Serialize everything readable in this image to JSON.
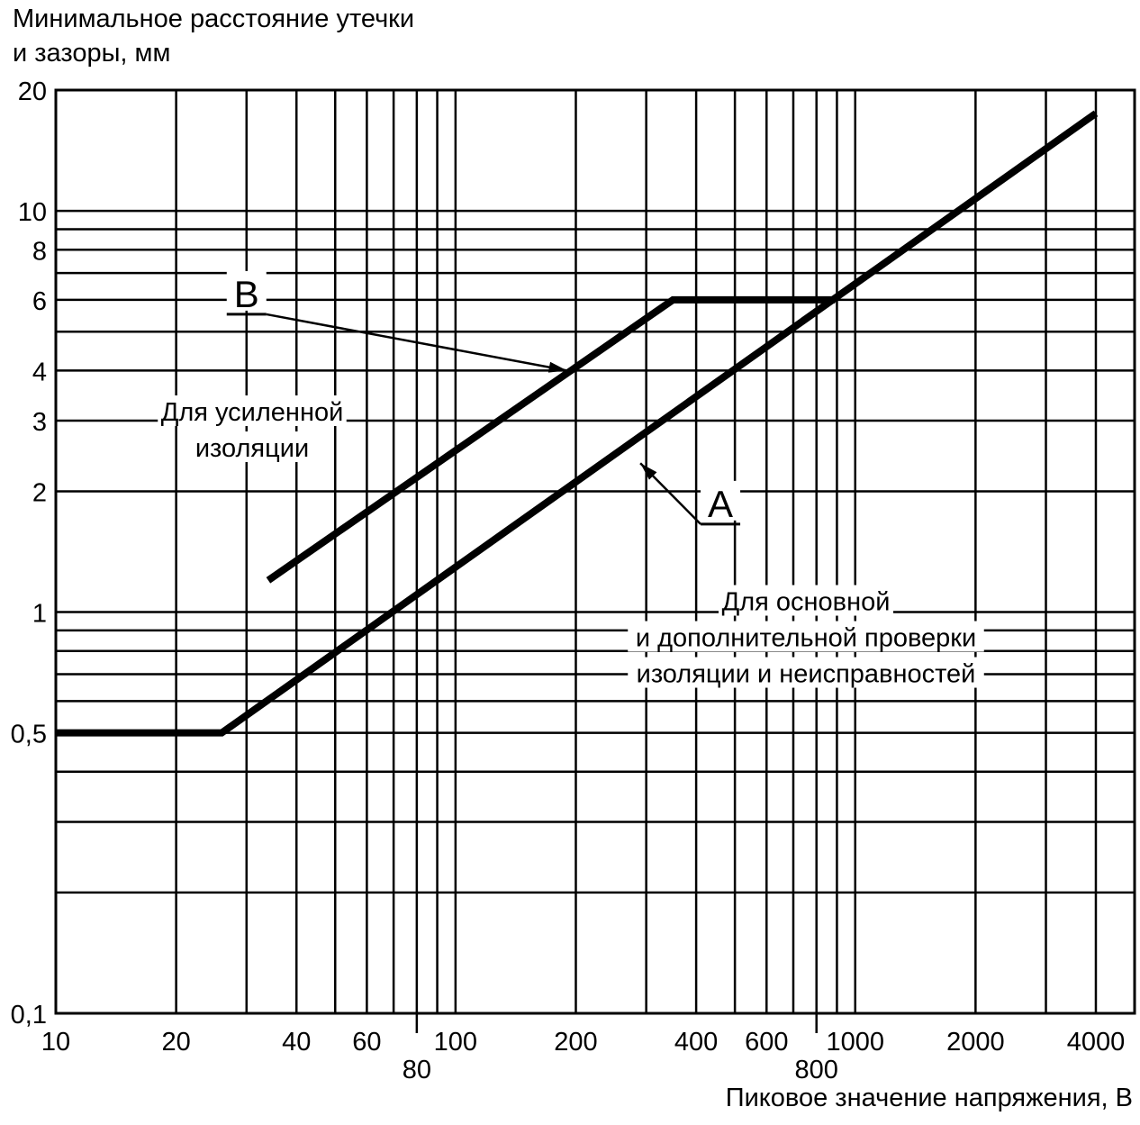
{
  "chart_data": {
    "type": "line",
    "title": "",
    "ylabel_lines": [
      "Минимальное расстояние утечки",
      "и зазоры, мм"
    ],
    "xlabel": "Пиковое значение напряжения, В",
    "xscale": "log",
    "yscale": "log",
    "xlim": [
      10,
      5000
    ],
    "ylim": [
      0.1,
      20
    ],
    "grid": true,
    "x_grid": [
      20,
      30,
      40,
      50,
      60,
      70,
      80,
      90,
      100,
      200,
      300,
      400,
      500,
      600,
      700,
      800,
      900,
      1000,
      2000,
      3000,
      4000
    ],
    "y_grid": [
      0.2,
      0.3,
      0.4,
      0.5,
      0.6,
      0.7,
      0.8,
      0.9,
      1,
      2,
      3,
      4,
      5,
      6,
      7,
      8,
      9,
      10
    ],
    "x_ticks": [
      {
        "value": 10,
        "label": "10",
        "row": 1
      },
      {
        "value": 20,
        "label": "20",
        "row": 1
      },
      {
        "value": 40,
        "label": "40",
        "row": 1
      },
      {
        "value": 60,
        "label": "60",
        "row": 1
      },
      {
        "value": 80,
        "label": "80",
        "row": 2
      },
      {
        "value": 100,
        "label": "100",
        "row": 1
      },
      {
        "value": 200,
        "label": "200",
        "row": 1
      },
      {
        "value": 400,
        "label": "400",
        "row": 1
      },
      {
        "value": 600,
        "label": "600",
        "row": 1
      },
      {
        "value": 800,
        "label": "800",
        "row": 2
      },
      {
        "value": 1000,
        "label": "1000",
        "row": 1
      },
      {
        "value": 2000,
        "label": "2000",
        "row": 1
      },
      {
        "value": 4000,
        "label": "4000",
        "row": 1
      }
    ],
    "y_ticks": [
      {
        "value": 20,
        "label": "20"
      },
      {
        "value": 10,
        "label": "10"
      },
      {
        "value": 8,
        "label": "8"
      },
      {
        "value": 6,
        "label": "6"
      },
      {
        "value": 4,
        "label": "4"
      },
      {
        "value": 3,
        "label": "3"
      },
      {
        "value": 2,
        "label": "2"
      },
      {
        "value": 1,
        "label": "1"
      },
      {
        "value": 0.5,
        "label": "0,5"
      },
      {
        "value": 0.1,
        "label": "0,1"
      }
    ],
    "series": [
      {
        "name": "A",
        "x": [
          10,
          26,
          4000
        ],
        "y": [
          0.5,
          0.5,
          17.5
        ]
      },
      {
        "name": "B",
        "x": [
          34,
          350,
          890
        ],
        "y": [
          1.2,
          6,
          6
        ]
      }
    ],
    "annotations": [
      {
        "id": "label_B",
        "text": "B",
        "x": 30,
        "y": 6,
        "arrow_to": [
          190,
          4
        ]
      },
      {
        "id": "label_A",
        "text": "A",
        "x": 460,
        "y": 1.8,
        "arrow_to": [
          290,
          2.35
        ]
      },
      {
        "id": "reinforced",
        "lines": [
          "Для усиленной",
          "изоляции"
        ],
        "x": 33,
        "y": 3
      },
      {
        "id": "basic",
        "lines": [
          "Для основной",
          "и дополнительной проверки",
          "изоляции и неисправностей"
        ],
        "x": 630,
        "y": 0.9
      }
    ]
  }
}
